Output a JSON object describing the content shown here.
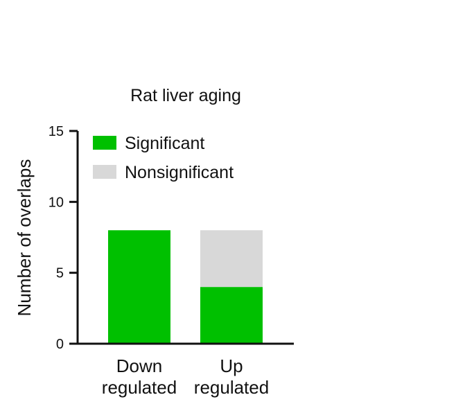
{
  "chart_data": {
    "type": "bar",
    "stacked": true,
    "title": "Rat liver aging",
    "ylabel": "Number of overlaps",
    "xlabel": "",
    "ylim": [
      0,
      15
    ],
    "yticks": [
      "0",
      "5",
      "10",
      "15"
    ],
    "categories": [
      {
        "line1": "Down",
        "line2": "regulated"
      },
      {
        "line1": "Up",
        "line2": "regulated"
      }
    ],
    "series": [
      {
        "name": "Significant",
        "color": "#00c000",
        "values": [
          8,
          4
        ]
      },
      {
        "name": "Nonsignificant",
        "color": "#d8d8d8",
        "values": [
          0,
          4
        ]
      }
    ],
    "legend_position": "top-left",
    "grid": false
  }
}
